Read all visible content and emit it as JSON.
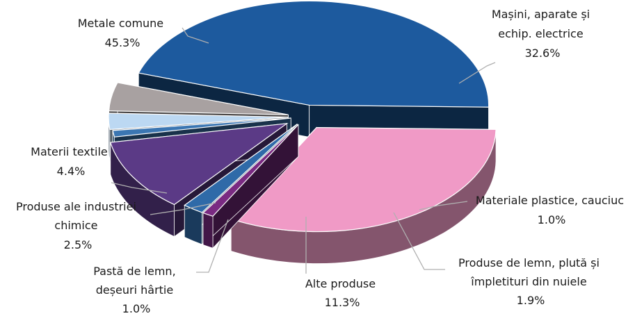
{
  "chart_data": {
    "type": "pie",
    "style": "3d-exploded",
    "legend": "none",
    "slices": [
      {
        "label_lines": [
          "Metale comune"
        ],
        "value_text": "45.3%",
        "value": 45.3,
        "color": "#1d5a9e"
      },
      {
        "label_lines": [
          "Mașini, aparate și",
          "echip. electrice"
        ],
        "value_text": "32.6%",
        "value": 32.6,
        "color": "#f09ac6"
      },
      {
        "label_lines": [
          "Materiale plastice, cauciuc"
        ],
        "value_text": "1.0%",
        "value": 1.0,
        "color": "#7a2a82"
      },
      {
        "label_lines": [
          "Produse de lemn, plută și",
          "împletituri din nuiele"
        ],
        "value_text": "1.9%",
        "value": 1.9,
        "color": "#2f6aa8"
      },
      {
        "label_lines": [
          "Alte produse"
        ],
        "value_text": "11.3%",
        "value": 11.3,
        "color": "#5b3a86"
      },
      {
        "label_lines": [
          "Pastă de lemn,",
          "deșeuri hârtie"
        ],
        "value_text": "1.0%",
        "value": 1.0,
        "color": "#3b76b2"
      },
      {
        "label_lines": [
          "Produse ale industriei",
          "chimice"
        ],
        "value_text": "2.5%",
        "value": 2.5,
        "color": "#bcd8f2"
      },
      {
        "label_lines": [
          "Materii textile"
        ],
        "value_text": "4.4%",
        "value": 4.4,
        "color": "#a8a1a1"
      }
    ]
  }
}
